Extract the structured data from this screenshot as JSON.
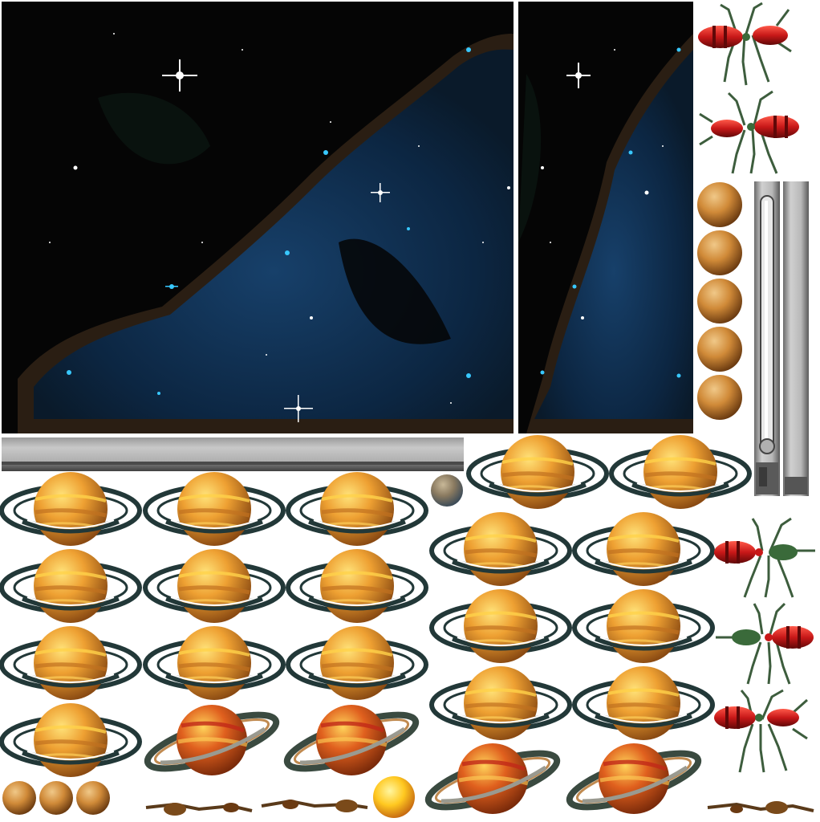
{
  "sheet": {
    "kind": "game sprite atlas",
    "background": "#ffffff"
  },
  "colors": {
    "space": "#050505",
    "nebula": "#0e2a4a",
    "nebula_edge": "#3a2a1a",
    "star": "#ffffff",
    "star_cyan": "#38c8ff",
    "planet_light": "#ffd24a",
    "planet_mid": "#e89528",
    "planet_dark": "#9a5418",
    "planet_red": "#c02818",
    "ring": "#223838",
    "ring_white": "#ffffff",
    "metal_light": "#d8d8d8",
    "metal_mid": "#a8a8a8",
    "metal_dark": "#505050",
    "bug_body": "#c81818",
    "bug_stripe": "#600808",
    "bug_head": "#3a6a3a",
    "bug_leg": "#3d5d3d",
    "moon": "#b89060",
    "moon_blue": "#708898",
    "sun": "#ffe040"
  },
  "sprites": {
    "space_backgrounds": [
      "space-background-large",
      "space-background-narrow"
    ],
    "metal_bars": [
      "metal-bar-horizontal",
      "metal-tube-vertical",
      "metal-bar-vertical"
    ],
    "ringed_planet_frames": 22,
    "rotating_planet_frames": 5,
    "bug_frames": 5,
    "moon_frames": 4,
    "sun_frames": 1,
    "wreck_frames": 3
  }
}
